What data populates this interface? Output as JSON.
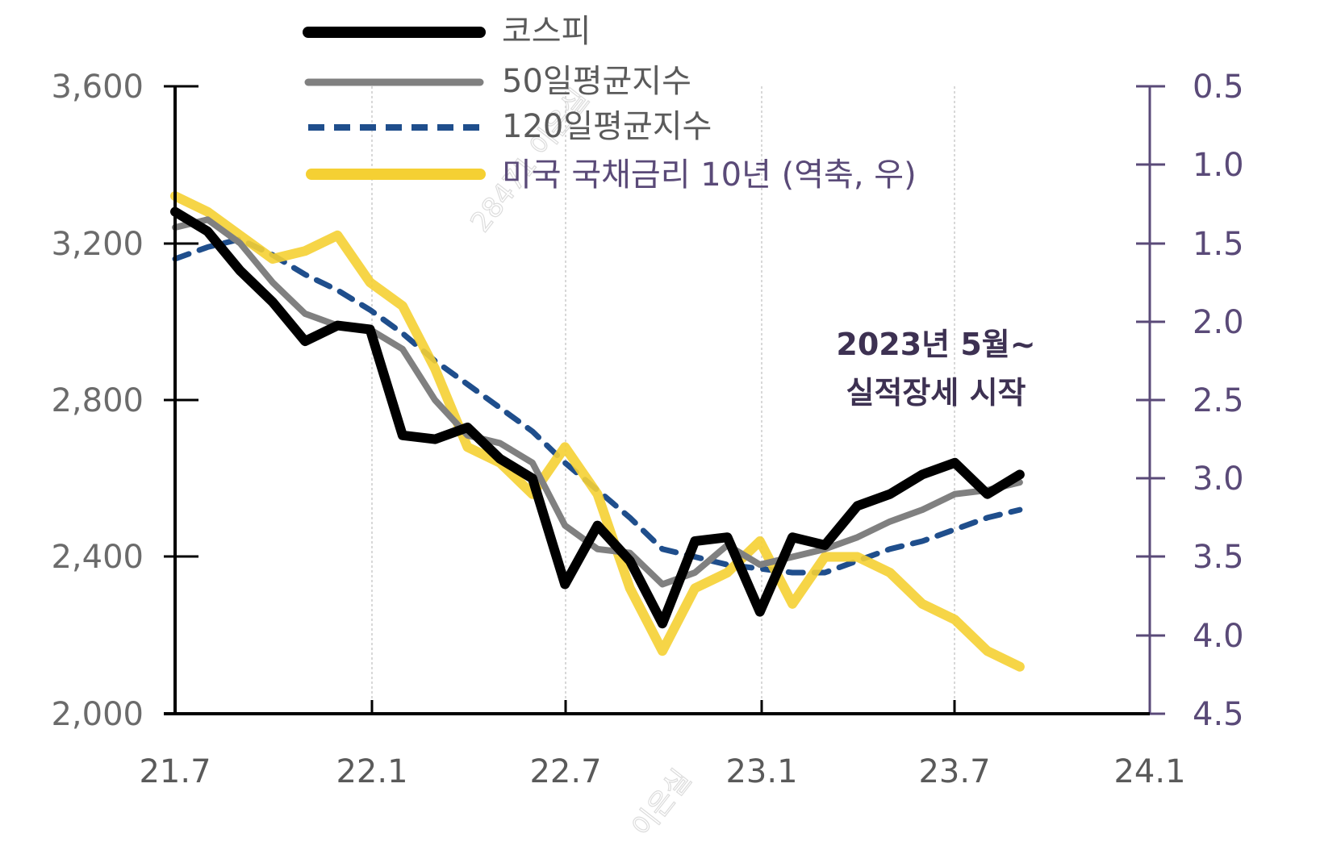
{
  "chart_data": {
    "type": "line",
    "title": "",
    "xlabel": "",
    "ylabel_left": "",
    "ylabel_right": "",
    "x_ticks": [
      "21.7",
      "22.1",
      "22.7",
      "23.1",
      "23.7",
      "24.1"
    ],
    "y_left": {
      "ticks": [
        "3,600",
        "3,200",
        "2,800",
        "2,400",
        "2,000"
      ],
      "range": [
        2000,
        3600
      ]
    },
    "y_right": {
      "ticks": [
        "0.5",
        "1.0",
        "1.5",
        "2.0",
        "2.5",
        "3.0",
        "3.5",
        "4.0",
        "4.5"
      ],
      "range": [
        0.5,
        4.5
      ],
      "inverted": true
    },
    "grid": {
      "vertical_dotted": true,
      "horizontal": false
    },
    "legend_position": "top-left",
    "x_months": [
      "21.7",
      "21.8",
      "21.9",
      "21.10",
      "21.11",
      "21.12",
      "22.1",
      "22.2",
      "22.3",
      "22.4",
      "22.5",
      "22.6",
      "22.7",
      "22.8",
      "22.9",
      "22.10",
      "22.11",
      "22.12",
      "23.1",
      "23.2",
      "23.3",
      "23.4",
      "23.5",
      "23.6",
      "23.7",
      "23.8",
      "23.9"
    ],
    "series": [
      {
        "name": "코스피",
        "axis": "left",
        "color": "#000000",
        "style": "solid-thick",
        "values": [
          3280,
          3230,
          3130,
          3050,
          2950,
          2990,
          2980,
          2710,
          2700,
          2730,
          2650,
          2600,
          2330,
          2480,
          2390,
          2230,
          2440,
          2450,
          2260,
          2450,
          2430,
          2530,
          2560,
          2610,
          2640,
          2560,
          2610
        ]
      },
      {
        "name": "50일평균지수",
        "axis": "left",
        "color": "#808080",
        "style": "solid",
        "values": [
          3240,
          3260,
          3200,
          3100,
          3020,
          2990,
          2980,
          2930,
          2800,
          2710,
          2690,
          2640,
          2480,
          2420,
          2410,
          2330,
          2360,
          2430,
          2380,
          2400,
          2420,
          2450,
          2490,
          2520,
          2560,
          2570,
          2590
        ]
      },
      {
        "name": "120일평균지수",
        "axis": "left",
        "color": "#1f4e8c",
        "style": "dashed",
        "values": [
          3160,
          3190,
          3210,
          3170,
          3120,
          3080,
          3030,
          2970,
          2900,
          2840,
          2780,
          2720,
          2640,
          2570,
          2500,
          2420,
          2400,
          2380,
          2370,
          2360,
          2360,
          2390,
          2420,
          2440,
          2470,
          2500,
          2520
        ]
      },
      {
        "name": "미국 국채금리 10년 (역축, 우)",
        "axis": "right",
        "color": "#f5d033",
        "style": "solid-thick",
        "values": [
          1.2,
          1.3,
          1.45,
          1.6,
          1.55,
          1.45,
          1.75,
          1.9,
          2.3,
          2.8,
          2.9,
          3.1,
          2.8,
          3.1,
          3.7,
          4.1,
          3.7,
          3.6,
          3.4,
          3.8,
          3.5,
          3.5,
          3.6,
          3.8,
          3.9,
          4.1,
          4.2
        ]
      }
    ],
    "annotations": [
      {
        "text": "2023년 5월~",
        "x": "23.5",
        "y_approx": "top-right region"
      },
      {
        "text": "실적장세 시작",
        "x": "23.5",
        "y_approx": "top-right region"
      }
    ]
  },
  "legend": {
    "items": [
      {
        "label": "코스피",
        "color": "#000000",
        "text_color": "#5a5a5a",
        "style": "solid"
      },
      {
        "label": "50일평균지수",
        "color": "#808080",
        "text_color": "#5a5a5a",
        "style": "solid"
      },
      {
        "label": "120일평균지수",
        "color": "#1f4e8c",
        "text_color": "#5a5a5a",
        "style": "dashed"
      },
      {
        "label": "미국 국채금리 10년 (역축, 우)",
        "color": "#f5d033",
        "text_color": "#5a4a78",
        "style": "solid"
      }
    ]
  },
  "annotation": {
    "line1": "2023년 5월~",
    "line2": "실적장세 시작"
  },
  "axes": {
    "left_ticks": [
      "3,600",
      "3,200",
      "2,800",
      "2,400",
      "2,000"
    ],
    "right_ticks": [
      "0.5",
      "1.0",
      "1.5",
      "2.0",
      "2.5",
      "3.0",
      "3.5",
      "4.0",
      "4.5"
    ],
    "x_ticks": [
      "21.7",
      "22.1",
      "22.7",
      "23.1",
      "23.7",
      "24.1"
    ]
  },
  "watermark": {
    "text1": "28471 이은실",
    "text2": "이은실"
  }
}
